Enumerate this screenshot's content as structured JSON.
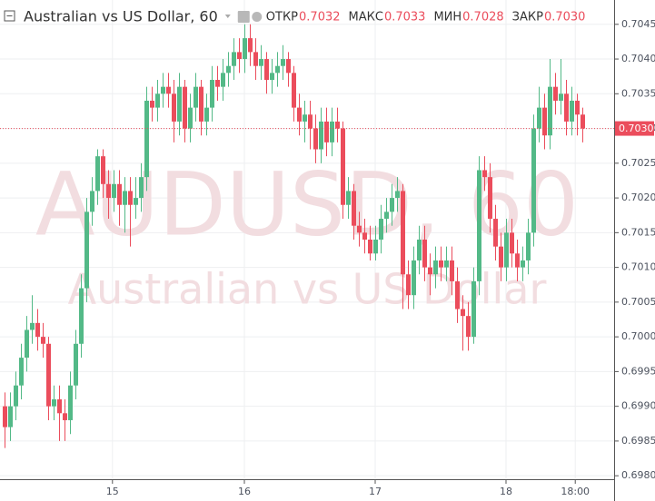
{
  "chart_data": {
    "type": "candlestick",
    "title": "Australian vs US Dollar, 60",
    "ohlc_legend": [
      {
        "name": "ОТКР",
        "value": "0.7032"
      },
      {
        "name": "МАКС",
        "value": "0.7033"
      },
      {
        "name": "МИН",
        "value": "0.7028"
      },
      {
        "name": "ЗАКР",
        "value": "0.7030"
      }
    ],
    "watermark": [
      "AUDUSD, 60",
      "Australian vs US Dollar"
    ],
    "up_color": "#53b987",
    "down_color": "#eb4d5c",
    "open": [
      0.699,
      0.6987,
      0.699,
      0.6993,
      0.6997,
      0.7001,
      0.7002,
      0.7,
      0.6999,
      0.699,
      0.6991,
      0.6989,
      0.6988,
      0.6993,
      0.6999,
      0.7007,
      0.7018,
      0.7021,
      0.7026,
      0.7022,
      0.702,
      0.7022,
      0.7019,
      0.7021,
      0.7019,
      0.702,
      0.7023,
      0.7034,
      0.7033,
      0.7035,
      0.7036,
      0.7035,
      0.7031,
      0.7036,
      0.703,
      0.7033,
      0.7036,
      0.7031,
      0.7033,
      0.7037,
      0.7036,
      0.7038,
      0.7039,
      0.7041,
      0.704,
      0.7043,
      0.7041,
      0.7039,
      0.704,
      0.7037,
      0.7038,
      0.7039,
      0.704,
      0.7038,
      0.7033,
      0.7031,
      0.7032,
      0.703,
      0.7027,
      0.7031,
      0.7028,
      0.7031,
      0.703,
      0.7019,
      0.7021,
      0.7016,
      0.7015,
      0.7014,
      0.7012,
      0.7014,
      0.7017,
      0.7018,
      0.702,
      0.7021,
      0.7009,
      0.7006,
      0.7011,
      0.7014,
      0.701,
      0.7009,
      0.7011,
      0.701,
      0.7011,
      0.7008,
      0.7004,
      0.7003,
      0.7,
      0.7008,
      0.7024,
      0.7023,
      0.7017,
      0.7013,
      0.701,
      0.7015,
      0.7012,
      0.701,
      0.7011,
      0.7015,
      0.703,
      0.7033,
      0.7029,
      0.7036,
      0.7034,
      0.7035,
      0.7031,
      0.7034,
      0.7032
    ],
    "high": [
      0.6992,
      0.6992,
      0.6995,
      0.6999,
      0.7003,
      0.7006,
      0.7004,
      0.7002,
      0.7,
      0.6993,
      0.6993,
      0.6991,
      0.6995,
      0.7001,
      0.7009,
      0.702,
      0.7023,
      0.7027,
      0.7027,
      0.7024,
      0.7024,
      0.7024,
      0.7023,
      0.7023,
      0.7023,
      0.7025,
      0.7036,
      0.7036,
      0.7037,
      0.7038,
      0.7038,
      0.7037,
      0.7038,
      0.7037,
      0.7035,
      0.7038,
      0.7037,
      0.7035,
      0.7039,
      0.7039,
      0.704,
      0.7041,
      0.7043,
      0.7043,
      0.7045,
      0.7045,
      0.7043,
      0.7042,
      0.7041,
      0.704,
      0.7041,
      0.7042,
      0.7041,
      0.7039,
      0.7035,
      0.7034,
      0.7034,
      0.7032,
      0.7033,
      0.7033,
      0.7033,
      0.7033,
      0.7031,
      0.7023,
      0.7022,
      0.7018,
      0.7017,
      0.7016,
      0.7016,
      0.7019,
      0.702,
      0.7022,
      0.7023,
      0.7022,
      0.7011,
      0.7013,
      0.7016,
      0.7016,
      0.7012,
      0.7013,
      0.7013,
      0.7013,
      0.7013,
      0.701,
      0.7006,
      0.7005,
      0.701,
      0.7026,
      0.7026,
      0.7025,
      0.7019,
      0.7015,
      0.7017,
      0.7017,
      0.7014,
      0.7013,
      0.7017,
      0.7032,
      0.7036,
      0.7035,
      0.704,
      0.7038,
      0.704,
      0.7037,
      0.7036,
      0.7035,
      0.7033
    ],
    "low": [
      0.6984,
      0.6985,
      0.6988,
      0.6991,
      0.6995,
      0.6999,
      0.6998,
      0.6997,
      0.6988,
      0.6988,
      0.6985,
      0.6985,
      0.6986,
      0.6991,
      0.6997,
      0.7005,
      0.7016,
      0.7019,
      0.702,
      0.7017,
      0.7018,
      0.7016,
      0.7015,
      0.7013,
      0.7017,
      0.7018,
      0.7021,
      0.7031,
      0.7031,
      0.7033,
      0.7033,
      0.7028,
      0.7029,
      0.7028,
      0.7028,
      0.7031,
      0.7029,
      0.7029,
      0.7031,
      0.7034,
      0.7034,
      0.7036,
      0.7037,
      0.7038,
      0.7038,
      0.7039,
      0.7037,
      0.7037,
      0.7035,
      0.7035,
      0.7036,
      0.7037,
      0.7036,
      0.7031,
      0.7029,
      0.7028,
      0.7027,
      0.7025,
      0.7025,
      0.7026,
      0.7026,
      0.7028,
      0.7017,
      0.7017,
      0.7014,
      0.7013,
      0.7012,
      0.7011,
      0.7011,
      0.7012,
      0.7015,
      0.7016,
      0.7018,
      0.7004,
      0.7004,
      0.7004,
      0.7009,
      0.7008,
      0.7006,
      0.7007,
      0.7008,
      0.7008,
      0.7006,
      0.7002,
      0.6998,
      0.6998,
      0.6999,
      0.7006,
      0.7021,
      0.7015,
      0.7011,
      0.7008,
      0.7008,
      0.701,
      0.7008,
      0.7008,
      0.7009,
      0.7013,
      0.7028,
      0.7027,
      0.7027,
      0.7032,
      0.7032,
      0.7029,
      0.7029,
      0.7029,
      0.7028
    ],
    "close": [
      0.6987,
      0.699,
      0.6993,
      0.6997,
      0.7001,
      0.7002,
      0.7,
      0.6999,
      0.699,
      0.6991,
      0.6989,
      0.6988,
      0.6993,
      0.6999,
      0.7007,
      0.7018,
      0.7021,
      0.7026,
      0.7022,
      0.702,
      0.7022,
      0.7019,
      0.7021,
      0.7019,
      0.702,
      0.7023,
      0.7034,
      0.7033,
      0.7035,
      0.7036,
      0.7035,
      0.7031,
      0.7036,
      0.703,
      0.7033,
      0.7036,
      0.7031,
      0.7033,
      0.7037,
      0.7036,
      0.7038,
      0.7039,
      0.7041,
      0.704,
      0.7043,
      0.7041,
      0.7039,
      0.704,
      0.7037,
      0.7038,
      0.7039,
      0.704,
      0.7038,
      0.7033,
      0.7031,
      0.7032,
      0.703,
      0.7027,
      0.7031,
      0.7028,
      0.7031,
      0.703,
      0.7019,
      0.7021,
      0.7016,
      0.7015,
      0.7014,
      0.7012,
      0.7014,
      0.7017,
      0.7018,
      0.702,
      0.7021,
      0.7009,
      0.7006,
      0.7011,
      0.7014,
      0.701,
      0.7009,
      0.7011,
      0.701,
      0.7011,
      0.7008,
      0.7004,
      0.7003,
      0.7,
      0.7008,
      0.7024,
      0.7023,
      0.7017,
      0.7013,
      0.701,
      0.7015,
      0.7012,
      0.701,
      0.7011,
      0.7015,
      0.703,
      0.7033,
      0.7029,
      0.7036,
      0.7034,
      0.7035,
      0.7031,
      0.7034,
      0.7032,
      0.703
    ],
    "xlim": [
      -0.83,
      111.83
    ],
    "xticks": [
      {
        "value": 19.8,
        "label": "15"
      },
      {
        "value": 44,
        "label": "16"
      },
      {
        "value": 68,
        "label": "17"
      },
      {
        "value": 92,
        "label": "18"
      },
      {
        "value": 104.7,
        "label": "18:00"
      }
    ],
    "ylim": [
      0.69795,
      0.70485
    ],
    "yticks": [
      {
        "value": 0.698,
        "label": "0.6980"
      },
      0.6985,
      {
        "value": 0.699,
        "label": "0.6990"
      },
      0.6995,
      {
        "value": 0.7,
        "label": "0.7000"
      },
      0.7005,
      {
        "value": 0.701,
        "label": "0.7010"
      },
      0.7015,
      {
        "value": 0.702,
        "label": "0.7020"
      },
      0.7025,
      {
        "value": 0.703,
        "label": "0.7030"
      },
      0.7035,
      {
        "value": 0.704,
        "label": "0.7040"
      },
      0.7045
    ],
    "last_price": {
      "value": 0.703,
      "label": "0.7030"
    },
    "grid": true
  }
}
